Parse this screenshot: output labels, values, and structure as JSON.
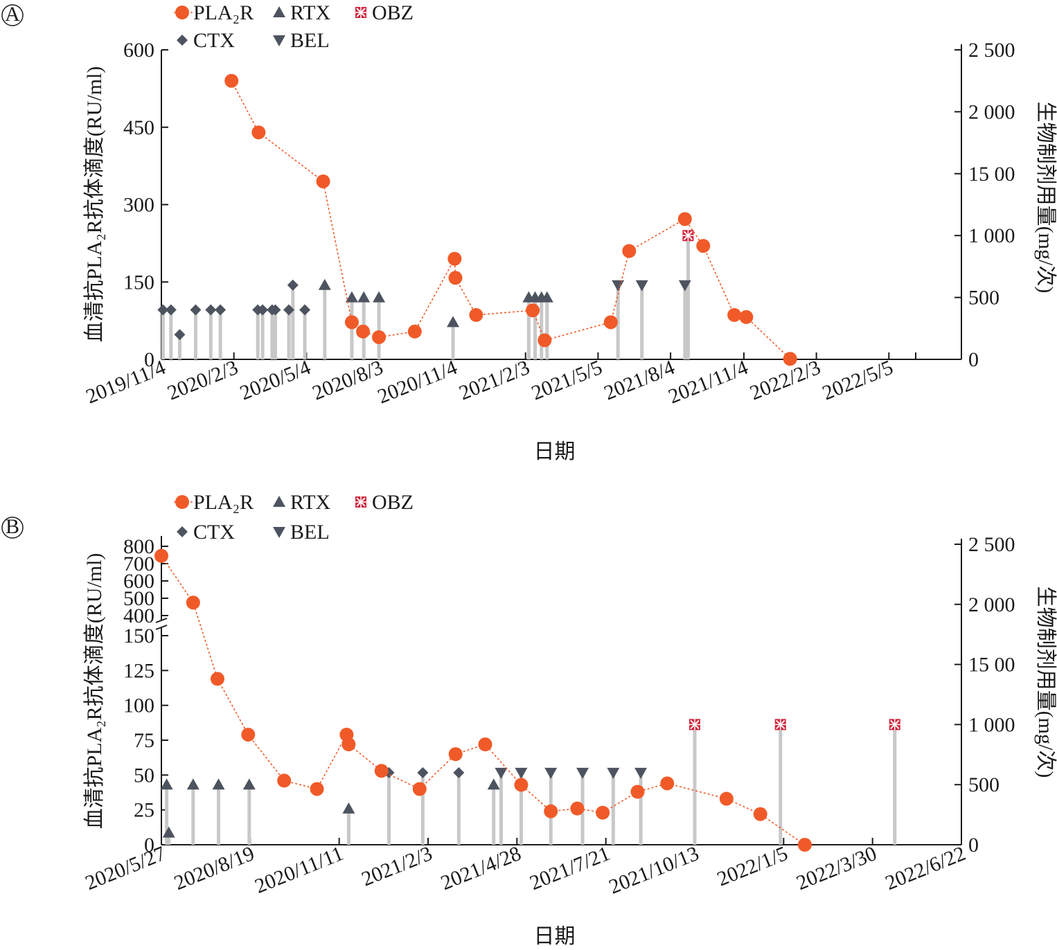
{
  "colors": {
    "pla2r": "#f05a28",
    "drug": "#4d5460",
    "obz": "#d0223a",
    "stem": "#c8c8c8",
    "axis": "#1a1a1a"
  },
  "icons": {
    "pla2r": "filled-circle",
    "rtx": "triangle-up",
    "obz": "box-cross",
    "ctx": "diamond",
    "bel": "triangle-down"
  },
  "chart_data": [
    {
      "panel_label": "A",
      "type": "line+lollipop",
      "xlabel": "日期",
      "ylabel_left": "血清抗PLA₂R抗体滴度(RU/ml)",
      "ylabel_right": "生物制剂用量(mg/次)",
      "ylim_left": [
        0,
        600
      ],
      "ylim_right": [
        0,
        2500
      ],
      "y_ticks_left": [
        0,
        150,
        300,
        450,
        600
      ],
      "y_ticks_right": [
        "0",
        "500",
        "1 000",
        "15 00",
        "2 000",
        "2 500"
      ],
      "x_start": "2019/11/4",
      "x_end": "2022/8/4",
      "x_ticks": [
        "2019/11/4",
        "2020/2/3",
        "2020/5/4",
        "2020/8/3",
        "2020/11/4",
        "2021/2/3",
        "2021/5/5",
        "2021/8/4",
        "2021/11/4",
        "2022/2/3",
        "2022/5/5"
      ],
      "legend": [
        {
          "key": "pla2r",
          "label": "PLA₂R"
        },
        {
          "key": "rtx",
          "label": "RTX"
        },
        {
          "key": "obz",
          "label": "OBZ"
        },
        {
          "key": "ctx",
          "label": "CTX"
        },
        {
          "key": "bel",
          "label": "BEL"
        }
      ],
      "pla2r": [
        [
          "2020/1/31",
          540
        ],
        [
          "2020/3/5",
          440
        ],
        [
          "2020/5/25",
          345
        ],
        [
          "2020/6/30",
          72
        ],
        [
          "2020/7/14",
          54
        ],
        [
          "2020/8/3",
          43
        ],
        [
          "2020/9/17",
          54
        ],
        [
          "2020/11/6",
          195
        ],
        [
          "2020/11/7",
          158
        ],
        [
          "2020/12/3",
          86
        ],
        [
          "2021/2/12",
          95
        ],
        [
          "2021/2/27",
          37
        ],
        [
          "2021/5/21",
          72
        ],
        [
          "2021/6/13",
          210
        ],
        [
          "2021/8/22",
          272
        ],
        [
          "2021/9/14",
          220
        ],
        [
          "2021/10/23",
          86
        ],
        [
          "2021/11/7",
          82
        ],
        [
          "2022/1/1",
          1
        ]
      ],
      "drugs": [
        {
          "type": "ctx",
          "date": "2019/11/6",
          "dose": 400
        },
        {
          "type": "ctx",
          "date": "2019/11/16",
          "dose": 400
        },
        {
          "type": "ctx",
          "date": "2019/11/27",
          "dose": 200
        },
        {
          "type": "ctx",
          "date": "2019/12/17",
          "dose": 400
        },
        {
          "type": "ctx",
          "date": "2020/1/5",
          "dose": 400
        },
        {
          "type": "ctx",
          "date": "2020/1/17",
          "dose": 400
        },
        {
          "type": "ctx",
          "date": "2020/3/4",
          "dose": 400
        },
        {
          "type": "ctx",
          "date": "2020/3/10",
          "dose": 400
        },
        {
          "type": "ctx",
          "date": "2020/3/22",
          "dose": 400
        },
        {
          "type": "ctx",
          "date": "2020/3/26",
          "dose": 400
        },
        {
          "type": "ctx",
          "date": "2020/4/12",
          "dose": 400
        },
        {
          "type": "ctx",
          "date": "2020/4/17",
          "dose": 600
        },
        {
          "type": "ctx",
          "date": "2020/5/2",
          "dose": 400
        },
        {
          "type": "rtx",
          "date": "2020/5/27",
          "dose": 600
        },
        {
          "type": "rtx",
          "date": "2020/6/30",
          "dose": 500
        },
        {
          "type": "rtx",
          "date": "2020/7/15",
          "dose": 500
        },
        {
          "type": "rtx",
          "date": "2020/8/3",
          "dose": 500
        },
        {
          "type": "rtx",
          "date": "2020/11/4",
          "dose": 300
        },
        {
          "type": "rtx",
          "date": "2021/2/7",
          "dose": 500
        },
        {
          "type": "rtx",
          "date": "2021/2/15",
          "dose": 500
        },
        {
          "type": "rtx",
          "date": "2021/2/23",
          "dose": 500
        },
        {
          "type": "rtx",
          "date": "2021/3/2",
          "dose": 500
        },
        {
          "type": "bel",
          "date": "2021/5/30",
          "dose": 600
        },
        {
          "type": "bel",
          "date": "2021/6/29",
          "dose": 600
        },
        {
          "type": "bel",
          "date": "2021/8/22",
          "dose": 600
        },
        {
          "type": "obz",
          "date": "2021/8/26",
          "dose": 1000
        }
      ]
    },
    {
      "panel_label": "B",
      "type": "line+lollipop",
      "xlabel": "日期",
      "ylabel_left": "血清抗PLA₂R抗体滴度(RU/ml)",
      "ylabel_right": "生物制剂用量(mg/次)",
      "ylim_left_lower": [
        0,
        150
      ],
      "ylim_left_upper": [
        400,
        800
      ],
      "ylim_right": [
        0,
        2500
      ],
      "y_ticks_left": [
        0,
        25,
        50,
        75,
        100,
        125,
        150,
        400,
        500,
        600,
        700,
        800
      ],
      "y_ticks_right": [
        "0",
        "500",
        "1 000",
        "15 00",
        "2 000",
        "2 500"
      ],
      "x_start": "2020/5/27",
      "x_end": "2022/6/22",
      "x_ticks": [
        "2020/5/27",
        "2020/8/19",
        "2020/11/11",
        "2021/2/3",
        "2021/4/28",
        "2021/7/21",
        "2021/10/13",
        "2022/1/5",
        "2022/3/30",
        "2022/6/22"
      ],
      "legend": [
        {
          "key": "pla2r",
          "label": "PLA₂R"
        },
        {
          "key": "rtx",
          "label": "RTX"
        },
        {
          "key": "obz",
          "label": "OBZ"
        },
        {
          "key": "ctx",
          "label": "CTX"
        },
        {
          "key": "bel",
          "label": "BEL"
        }
      ],
      "pla2r": [
        [
          "2020/5/27",
          745
        ],
        [
          "2020/6/26",
          475
        ],
        [
          "2020/7/19",
          119
        ],
        [
          "2020/8/17",
          79
        ],
        [
          "2020/9/20",
          46
        ],
        [
          "2020/10/21",
          40
        ],
        [
          "2020/11/18",
          79
        ],
        [
          "2020/11/20",
          72
        ],
        [
          "2020/12/21",
          53
        ],
        [
          "2021/1/26",
          40
        ],
        [
          "2021/3/1",
          65
        ],
        [
          "2021/3/29",
          72
        ],
        [
          "2021/5/2",
          43
        ],
        [
          "2021/5/30",
          24
        ],
        [
          "2021/6/24",
          26
        ],
        [
          "2021/7/18",
          23
        ],
        [
          "2021/8/20",
          38
        ],
        [
          "2021/9/17",
          44
        ],
        [
          "2021/11/12",
          33
        ],
        [
          "2021/12/14",
          22
        ],
        [
          "2022/1/25",
          0
        ]
      ],
      "drugs": [
        {
          "type": "rtx",
          "date": "2020/6/1",
          "dose": 500
        },
        {
          "type": "rtx",
          "date": "2020/6/3",
          "dose": 100
        },
        {
          "type": "rtx",
          "date": "2020/6/26",
          "dose": 500
        },
        {
          "type": "rtx",
          "date": "2020/7/20",
          "dose": 500
        },
        {
          "type": "rtx",
          "date": "2020/8/18",
          "dose": 500
        },
        {
          "type": "rtx",
          "date": "2020/11/20",
          "dose": 300
        },
        {
          "type": "rtx",
          "date": "2021/4/6",
          "dose": 500
        },
        {
          "type": "ctx",
          "date": "2020/12/28",
          "dose": 600
        },
        {
          "type": "ctx",
          "date": "2021/1/29",
          "dose": 600
        },
        {
          "type": "ctx",
          "date": "2021/3/4",
          "dose": 600
        },
        {
          "type": "bel",
          "date": "2021/4/13",
          "dose": 600
        },
        {
          "type": "bel",
          "date": "2021/5/2",
          "dose": 600
        },
        {
          "type": "bel",
          "date": "2021/5/30",
          "dose": 600
        },
        {
          "type": "bel",
          "date": "2021/6/29",
          "dose": 600
        },
        {
          "type": "bel",
          "date": "2021/7/28",
          "dose": 600
        },
        {
          "type": "bel",
          "date": "2021/8/23",
          "dose": 600
        },
        {
          "type": "obz",
          "date": "2021/10/13",
          "dose": 1000
        },
        {
          "type": "obz",
          "date": "2022/1/2",
          "dose": 1000
        },
        {
          "type": "obz",
          "date": "2022/4/20",
          "dose": 1000
        }
      ]
    }
  ]
}
